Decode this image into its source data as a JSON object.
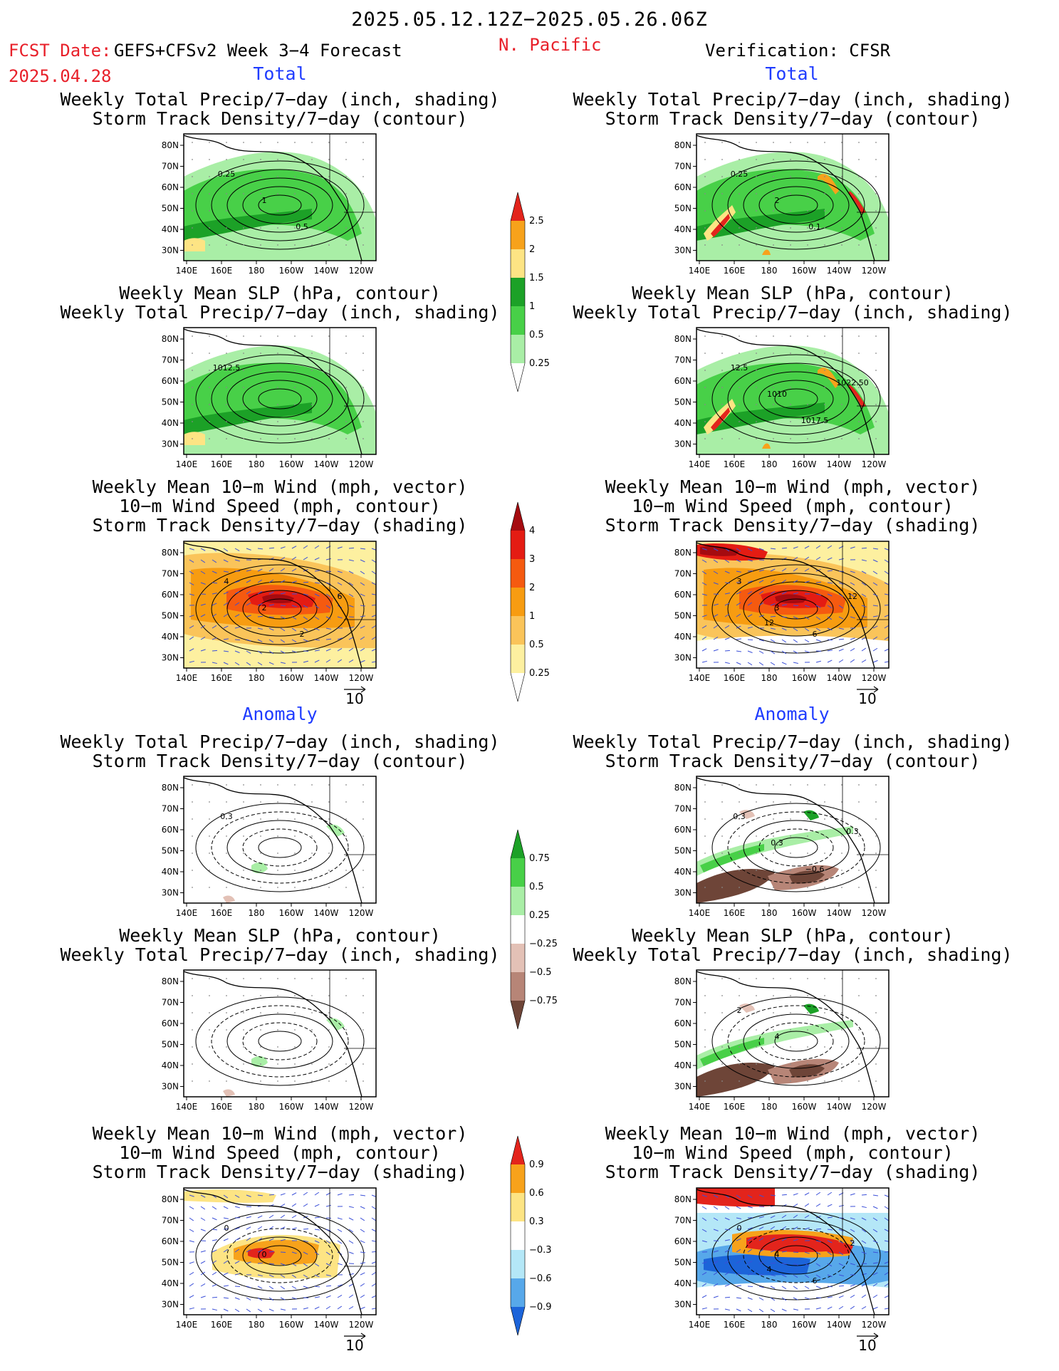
{
  "header": {
    "date_range": "2025.05.12.12Z−2025.05.26.06Z",
    "fcst_label": "FCST Date:",
    "model": "GEFS+CFSv2 Week 3−4 Forecast",
    "fcst_date": "2025.04.28",
    "region": "N. Pacific",
    "verification": "Verification: CFSR"
  },
  "sections": {
    "total": "Total",
    "anomaly": "Anomaly"
  },
  "titles": {
    "precip_storm_1": "Weekly Total Precip/7−day (inch, shading)",
    "precip_storm_2": "Storm Track Density/7−day (contour)",
    "slp_1": "Weekly Mean SLP (hPa, contour)",
    "slp_2": "Weekly Total Precip/7−day (inch, shading)",
    "wind_1": "Weekly Mean 10−m Wind (mph, vector)",
    "wind_2": "10−m Wind Speed (mph, contour)",
    "wind_3": "Storm Track Density/7−day (shading)"
  },
  "axes": {
    "lat_labels": [
      "80N",
      "70N",
      "60N",
      "50N",
      "40N",
      "30N"
    ],
    "lon_labels": [
      "140E",
      "160E",
      "180",
      "160W",
      "140W",
      "120W"
    ]
  },
  "vector_ref": "10",
  "colorbars": {
    "precip_total": {
      "labels": [
        "2.5",
        "2",
        "1.5",
        "1",
        "0.5",
        "0.25"
      ],
      "colors": [
        "#e3241c",
        "#f7a21b",
        "#fde484",
        "#1ca127",
        "#48d048",
        "#a9eea6",
        "#ffffff"
      ]
    },
    "storm_total": {
      "labels": [
        "4",
        "3",
        "2",
        "1",
        "0.5",
        "0.25"
      ],
      "colors": [
        "#a50b10",
        "#e41c13",
        "#f55a10",
        "#f79c11",
        "#fac45a",
        "#fdf0a0",
        "#ffffff"
      ]
    },
    "precip_anom": {
      "labels": [
        "0.75",
        "0.5",
        "0.25",
        "−0.25",
        "−0.5",
        "−0.75"
      ],
      "colors": [
        "#1ca127",
        "#48d048",
        "#a9eea6",
        "#ffffff",
        "#e3c1b6",
        "#b78577",
        "#6e4538"
      ]
    },
    "storm_anom": {
      "labels": [
        "0.9",
        "0.6",
        "0.3",
        "−0.3",
        "−0.6",
        "−0.9"
      ],
      "colors": [
        "#e3241c",
        "#f7a21b",
        "#fde484",
        "#ffffff",
        "#b4e7f7",
        "#57a8ea",
        "#1c64d9"
      ]
    }
  },
  "contour_labels": {
    "fcst_precip_total": [
      "0.25",
      "1",
      "0.5"
    ],
    "cfsr_precip_total": [
      "0.25",
      "2",
      "0.1"
    ],
    "fcst_slp_total": [
      "1012.5"
    ],
    "cfsr_slp_total": [
      "12.5",
      "1010",
      "1017.5",
      "1022.50"
    ],
    "fcst_wind_total": [
      "4",
      "2",
      "2",
      "6"
    ],
    "cfsr_wind_total": [
      "3",
      "3",
      "6",
      "12",
      "12"
    ],
    "fcst_precip_anom": [
      "0.3"
    ],
    "cfsr_precip_anom": [
      "0.3",
      "0.3",
      "−0.6",
      "0.3"
    ],
    "cfsr_slp_anom": [
      "2",
      "4"
    ],
    "fcst_wind_anom": [
      "0",
      "0"
    ],
    "cfsr_wind_anom": [
      "0",
      "4",
      "6",
      "2",
      "4"
    ]
  },
  "colors": {
    "accent_red": "#e8202a",
    "accent_blue": "#1f3cff"
  }
}
